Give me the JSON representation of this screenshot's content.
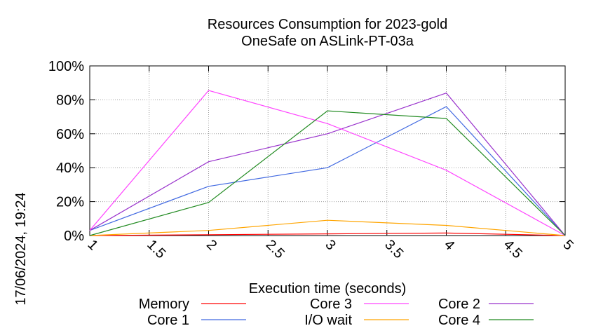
{
  "chart_data": {
    "type": "line",
    "title": "Resources Consumption for 2023-gold",
    "subtitle": "OneSafe on ASLink-PT-03a",
    "xlabel": "Execution time (seconds)",
    "ylabel": "",
    "side_label": "17/06/2024, 19:24",
    "xlim": [
      1,
      5
    ],
    "ylim": [
      0,
      100
    ],
    "x_ticks": [
      1,
      1.5,
      2,
      2.5,
      3,
      3.5,
      4,
      4.5,
      5
    ],
    "x_tick_labels": [
      "1",
      "1.5",
      "2",
      "2.5",
      "3",
      "3.5",
      "4",
      "4.5",
      "5"
    ],
    "y_ticks": [
      0,
      20,
      40,
      60,
      80,
      100
    ],
    "y_tick_labels": [
      "0%",
      "20%",
      "40%",
      "60%",
      "80%",
      "100%"
    ],
    "grid": true,
    "legend_position": "bottom",
    "x": [
      1,
      2,
      3,
      4,
      5
    ],
    "series": [
      {
        "name": "Memory",
        "color": "#ff0000",
        "values": [
          0,
          0.5,
          1,
          1.5,
          0
        ]
      },
      {
        "name": "I/O wait",
        "color": "#ffa500",
        "values": [
          0,
          3,
          9,
          6,
          0
        ]
      },
      {
        "name": "Core 1",
        "color": "#4169e1",
        "values": [
          3,
          29,
          40,
          76,
          0
        ]
      },
      {
        "name": "Core 2",
        "color": "#9932cc",
        "values": [
          3,
          43.5,
          60,
          84,
          0
        ]
      },
      {
        "name": "Core 3",
        "color": "#ff44ff",
        "values": [
          3,
          85.5,
          66,
          38.5,
          0
        ]
      },
      {
        "name": "Core 4",
        "color": "#228b22",
        "values": [
          0,
          19.5,
          73.5,
          69,
          0
        ]
      }
    ],
    "legend_order": [
      0,
      2,
      4,
      1,
      3,
      5
    ]
  }
}
